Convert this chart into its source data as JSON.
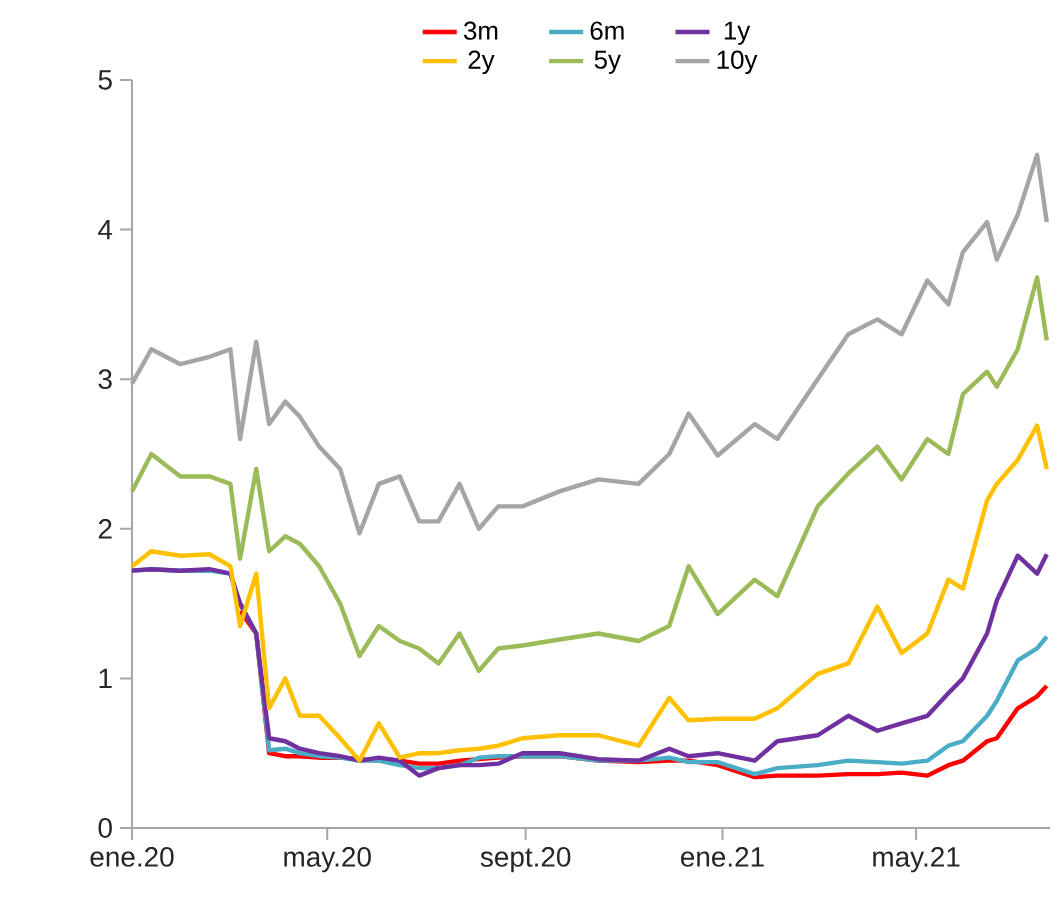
{
  "chart_data": {
    "type": "line",
    "x": [
      "2020-01-01",
      "2020-01-13",
      "2020-01-31",
      "2020-02-18",
      "2020-03-02",
      "2020-03-08",
      "2020-03-18",
      "2020-03-26",
      "2020-04-05",
      "2020-04-14",
      "2020-04-26",
      "2020-05-09",
      "2020-05-21",
      "2020-06-02",
      "2020-06-15",
      "2020-06-27",
      "2020-07-09",
      "2020-07-22",
      "2020-08-03",
      "2020-08-15",
      "2020-08-30",
      "2020-09-22",
      "2020-10-16",
      "2020-11-10",
      "2020-11-29",
      "2020-12-11",
      "2020-12-29",
      "2021-01-21",
      "2021-02-04",
      "2021-03-01",
      "2021-03-20",
      "2021-04-07",
      "2021-04-22",
      "2021-05-08",
      "2021-05-21",
      "2021-05-30",
      "2021-06-14",
      "2021-06-20",
      "2021-07-03",
      "2021-07-15",
      "2021-07-21"
    ],
    "series": [
      {
        "name": "3m",
        "color": "#ff0000",
        "values": [
          null,
          null,
          null,
          null,
          null,
          1.45,
          1.3,
          0.5,
          0.48,
          0.48,
          0.47,
          0.47,
          0.46,
          0.45,
          0.45,
          0.43,
          0.43,
          0.45,
          0.46,
          0.47,
          0.48,
          0.48,
          0.45,
          0.44,
          0.45,
          0.45,
          0.42,
          0.34,
          0.35,
          0.35,
          0.36,
          0.36,
          0.37,
          0.35,
          0.42,
          0.45,
          0.58,
          0.6,
          0.8,
          0.88,
          0.95
        ]
      },
      {
        "name": "6m",
        "color": "#4bacc6",
        "values": [
          1.72,
          1.73,
          1.72,
          1.72,
          1.7,
          1.5,
          1.3,
          0.52,
          0.53,
          0.5,
          0.48,
          0.47,
          0.45,
          0.45,
          0.42,
          0.4,
          0.4,
          0.42,
          0.47,
          0.48,
          0.48,
          0.48,
          0.45,
          0.45,
          0.47,
          0.44,
          0.44,
          0.36,
          0.4,
          0.42,
          0.45,
          0.44,
          0.43,
          0.45,
          0.55,
          0.58,
          0.75,
          0.85,
          1.12,
          1.2,
          1.28
        ]
      },
      {
        "name": "1y",
        "color": "#7030a0",
        "values": [
          1.72,
          1.73,
          1.72,
          1.73,
          1.7,
          1.5,
          1.3,
          0.6,
          0.58,
          0.53,
          0.5,
          0.48,
          0.45,
          0.47,
          0.45,
          0.35,
          0.4,
          0.42,
          0.42,
          0.43,
          0.5,
          0.5,
          0.46,
          0.45,
          0.53,
          0.48,
          0.5,
          0.45,
          0.58,
          0.62,
          0.75,
          0.65,
          0.7,
          0.75,
          0.9,
          1.0,
          1.3,
          1.52,
          1.82,
          1.7,
          1.83
        ]
      },
      {
        "name": "2y",
        "color": "#ffc000",
        "values": [
          1.75,
          1.85,
          1.82,
          1.83,
          1.75,
          1.35,
          1.7,
          0.8,
          1.0,
          0.75,
          0.75,
          0.6,
          0.45,
          0.7,
          0.47,
          0.5,
          0.5,
          0.52,
          0.53,
          0.55,
          0.6,
          0.62,
          0.62,
          0.55,
          0.87,
          0.72,
          0.73,
          0.73,
          0.8,
          1.03,
          1.1,
          1.48,
          1.17,
          1.3,
          1.66,
          1.6,
          2.19,
          2.3,
          2.46,
          2.69,
          2.4
        ]
      },
      {
        "name": "5y",
        "color": "#9bbb59",
        "values": [
          2.25,
          2.5,
          2.35,
          2.35,
          2.3,
          1.8,
          2.4,
          1.85,
          1.95,
          1.9,
          1.75,
          1.5,
          1.15,
          1.35,
          1.25,
          1.2,
          1.1,
          1.3,
          1.05,
          1.2,
          1.22,
          1.26,
          1.3,
          1.25,
          1.35,
          1.75,
          1.43,
          1.66,
          1.55,
          2.15,
          2.37,
          2.55,
          2.33,
          2.6,
          2.5,
          2.9,
          3.05,
          2.95,
          3.2,
          3.68,
          3.26
        ]
      },
      {
        "name": "10y",
        "color": "#a5a5a5",
        "values": [
          2.97,
          3.2,
          3.1,
          3.15,
          3.2,
          2.6,
          3.25,
          2.7,
          2.85,
          2.75,
          2.55,
          2.4,
          1.97,
          2.3,
          2.35,
          2.05,
          2.05,
          2.3,
          2.0,
          2.15,
          2.15,
          2.25,
          2.33,
          2.3,
          2.5,
          2.77,
          2.49,
          2.7,
          2.6,
          3.0,
          3.3,
          3.4,
          3.3,
          3.66,
          3.5,
          3.85,
          4.05,
          3.8,
          4.1,
          4.5,
          4.05
        ]
      }
    ],
    "xlim": [
      "2020-01-01",
      "2021-07-23"
    ],
    "xticks": [
      {
        "value": "2020-01-01",
        "label": "ene.20"
      },
      {
        "value": "2020-05-01",
        "label": "may.20"
      },
      {
        "value": "2020-09-01",
        "label": "sept.20"
      },
      {
        "value": "2021-01-01",
        "label": "ene.21"
      },
      {
        "value": "2021-05-01",
        "label": "may.21"
      }
    ],
    "ylim": [
      0,
      5
    ],
    "yticks": [
      0,
      1,
      2,
      3,
      4,
      5
    ],
    "grid": false,
    "legend": "top",
    "marker": "none",
    "line_style": "solid"
  }
}
